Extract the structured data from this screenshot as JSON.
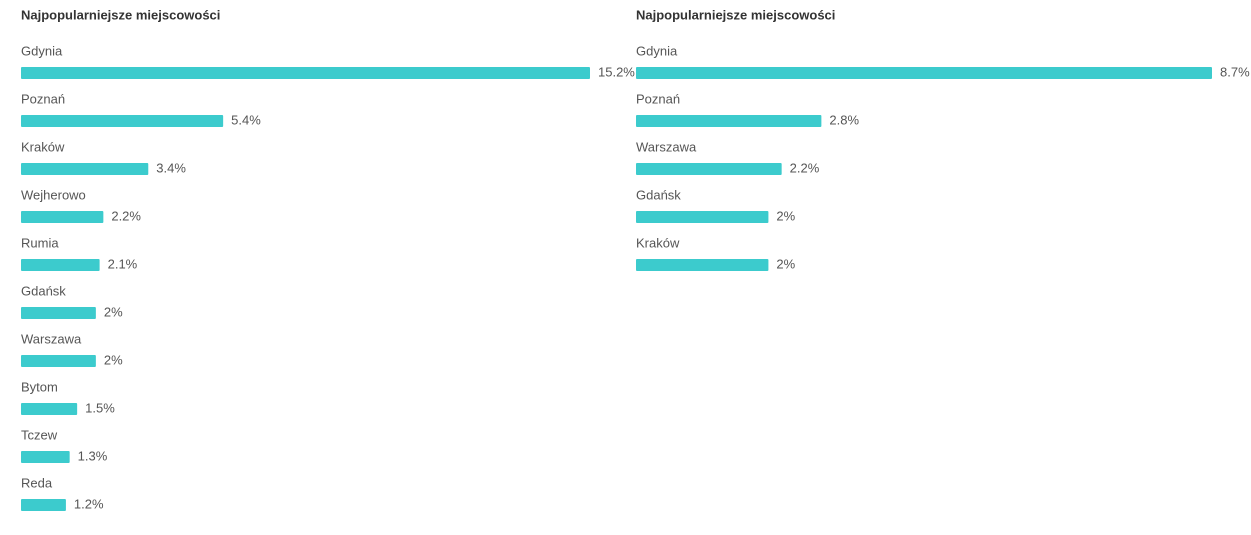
{
  "chart_data": [
    {
      "type": "bar",
      "orientation": "horizontal",
      "title": "Najpopularniejsze miejscowości",
      "color": "#3ccbcd",
      "categories": [
        "Gdynia",
        "Poznań",
        "Kraków",
        "Wejherowo",
        "Rumia",
        "Gdańsk",
        "Warszawa",
        "Bytom",
        "Tczew",
        "Reda"
      ],
      "values": [
        15.2,
        5.4,
        3.4,
        2.2,
        2.1,
        2,
        2,
        1.5,
        1.3,
        1.2
      ],
      "value_labels": [
        "15.2%",
        "5.4%",
        "3.4%",
        "2.2%",
        "2.1%",
        "2%",
        "2%",
        "1.5%",
        "1.3%",
        "1.2%"
      ]
    },
    {
      "type": "bar",
      "orientation": "horizontal",
      "title": "Najpopularniejsze miejscowości",
      "color": "#3ccbcd",
      "categories": [
        "Gdynia",
        "Poznań",
        "Warszawa",
        "Gdańsk",
        "Kraków"
      ],
      "values": [
        8.7,
        2.8,
        2.2,
        2,
        2
      ],
      "value_labels": [
        "8.7%",
        "2.8%",
        "2.2%",
        "2%",
        "2%"
      ]
    }
  ]
}
